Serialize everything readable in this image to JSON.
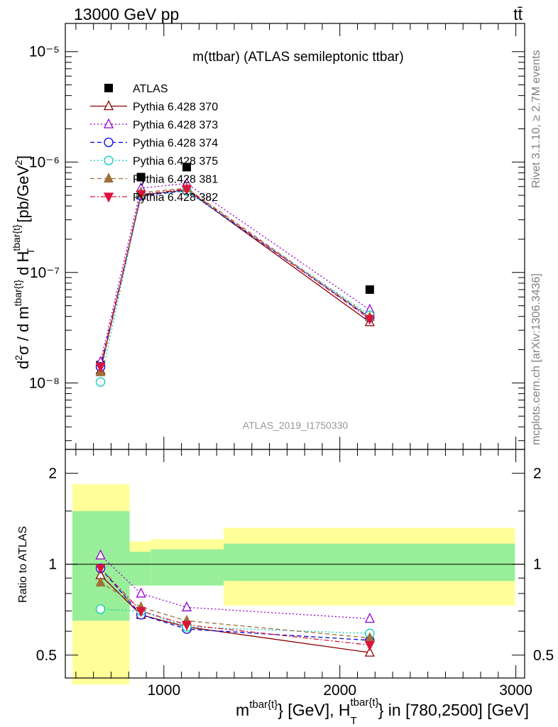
{
  "header": {
    "left": "13000 GeV pp",
    "right": "tt̄"
  },
  "side": {
    "rivet": "Rivet 3.1.10, ≥ 2.7M events",
    "mcplots": "mcplots.cern.ch [arXiv:1306.3436]"
  },
  "chart_data": [
    {
      "type": "scatter",
      "panel": "main",
      "title": "m(ttbar) (ATLAS semileptonic ttbar)",
      "analysis": "ATLAS_2019_I1750330",
      "ylabel": "d²σ / d m^{tbar{t}} d H_T^{tbar{t}} [pb/GeV²]",
      "yscale": "log",
      "ylim": [
        2.5e-09,
        1.8e-05
      ],
      "xlim": [
        440,
        3050
      ],
      "y_tick_labels": [
        "10⁻⁸",
        "10⁻⁷",
        "10⁻⁶",
        "10⁻⁵"
      ],
      "x": [
        640,
        870,
        1130,
        2170
      ],
      "legend_placement": "top-left",
      "series": [
        {
          "name": "ATLAS",
          "color": "#000000",
          "marker": "filled-square",
          "values": [
            1.45e-08,
            7.3e-07,
            9e-07,
            7e-08
          ]
        },
        {
          "name": "Pythia 6.428 370",
          "color": "#8b0000",
          "style": "solid",
          "marker": "open-triangle-up",
          "values": [
            1.3e-08,
            5e-07,
            5.6e-07,
            3.55e-08
          ]
        },
        {
          "name": "Pythia 6.428 373",
          "color": "#9400d3",
          "style": "dotted",
          "marker": "open-triangle-up",
          "values": [
            1.55e-08,
            5.8e-07,
            6.4e-07,
            4.6e-08
          ]
        },
        {
          "name": "Pythia 6.428 374",
          "color": "#0000dd",
          "style": "dashed",
          "marker": "open-circle",
          "values": [
            1.4e-08,
            4.95e-07,
            5.5e-07,
            3.9e-08
          ]
        },
        {
          "name": "Pythia 6.428 375",
          "color": "#00cdbe",
          "style": "dotted",
          "marker": "open-circle",
          "values": [
            1.02e-08,
            5.1e-07,
            5.5e-07,
            4.1e-08
          ]
        },
        {
          "name": "Pythia 6.428 381",
          "color": "#a0703a",
          "style": "dashed",
          "marker": "filled-triangle-up",
          "values": [
            1.25e-08,
            5.3e-07,
            5.8e-07,
            3.95e-08
          ]
        },
        {
          "name": "Pythia 6.428 382",
          "color": "#dc143c",
          "style": "dashdot",
          "marker": "filled-triangle-down",
          "values": [
            1.4e-08,
            5.1e-07,
            5.7e-07,
            3.8e-08
          ]
        }
      ]
    },
    {
      "type": "scatter",
      "panel": "ratio",
      "ylabel": "Ratio to ATLAS",
      "xlabel": "m^{tbar{t}} [GeV], H_T^{tbar{t}} in [780,2500] [GeV]",
      "yscale": "log",
      "ylim": [
        0.42,
        2.4
      ],
      "xlim": [
        440,
        3050
      ],
      "x_ticks": [
        1000,
        2000,
        3000
      ],
      "y_ticks": [
        0.5,
        1,
        2
      ],
      "x": [
        640,
        870,
        1130,
        2170
      ],
      "bands": [
        {
          "x_from": 480,
          "x_to": 805,
          "inner": [
            0.65,
            1.5
          ],
          "outer": [
            0.4,
            1.84
          ]
        },
        {
          "x_from": 805,
          "x_to": 925,
          "inner": [
            0.85,
            1.1
          ],
          "outer": [
            0.85,
            1.19
          ]
        },
        {
          "x_from": 925,
          "x_to": 1340,
          "inner": [
            0.85,
            1.12
          ],
          "outer": [
            0.85,
            1.21
          ]
        },
        {
          "x_from": 1340,
          "x_to": 2995,
          "inner": [
            0.88,
            1.17
          ],
          "outer": [
            0.73,
            1.32
          ]
        }
      ],
      "series": [
        {
          "name": "Pythia 6.428 370",
          "values": [
            0.92,
            0.68,
            0.62,
            0.51
          ]
        },
        {
          "name": "Pythia 6.428 373",
          "values": [
            1.07,
            0.8,
            0.72,
            0.66
          ]
        },
        {
          "name": "Pythia 6.428 374",
          "values": [
            0.97,
            0.68,
            0.61,
            0.56
          ]
        },
        {
          "name": "Pythia 6.428 375",
          "values": [
            0.71,
            0.7,
            0.62,
            0.59
          ]
        },
        {
          "name": "Pythia 6.428 381",
          "values": [
            0.87,
            0.72,
            0.65,
            0.57
          ]
        },
        {
          "name": "Pythia 6.428 382",
          "values": [
            0.97,
            0.7,
            0.63,
            0.54
          ]
        }
      ]
    }
  ]
}
